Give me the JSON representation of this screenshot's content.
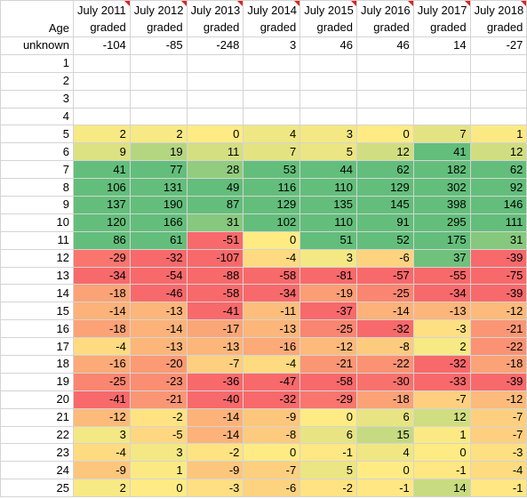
{
  "table": {
    "corner": "Age",
    "columns": [
      [
        "July 2011",
        "graded"
      ],
      [
        "July 2012",
        "graded"
      ],
      [
        "July 2013",
        "graded"
      ],
      [
        "July 2014",
        "graded"
      ],
      [
        "July 2015",
        "graded"
      ],
      [
        "July 2016",
        "graded"
      ],
      [
        "July 2017",
        "graded"
      ],
      [
        "July 2018",
        "graded"
      ]
    ],
    "rows": [
      {
        "label": "unknown",
        "values": [
          -104,
          -85,
          -248,
          3,
          46,
          46,
          14,
          -27
        ]
      },
      {
        "label": "1",
        "values": [
          null,
          null,
          null,
          null,
          null,
          null,
          null,
          null
        ]
      },
      {
        "label": "2",
        "values": [
          null,
          null,
          null,
          null,
          null,
          null,
          null,
          null
        ]
      },
      {
        "label": "3",
        "values": [
          null,
          null,
          null,
          null,
          null,
          null,
          null,
          null
        ]
      },
      {
        "label": "4",
        "values": [
          null,
          null,
          null,
          null,
          null,
          null,
          null,
          null
        ]
      },
      {
        "label": "5",
        "values": [
          2,
          2,
          0,
          4,
          3,
          0,
          7,
          1
        ]
      },
      {
        "label": "6",
        "values": [
          9,
          19,
          11,
          7,
          5,
          12,
          41,
          12
        ]
      },
      {
        "label": "7",
        "values": [
          41,
          77,
          28,
          53,
          44,
          62,
          182,
          62
        ]
      },
      {
        "label": "8",
        "values": [
          106,
          131,
          49,
          116,
          110,
          129,
          302,
          92
        ]
      },
      {
        "label": "9",
        "values": [
          137,
          190,
          87,
          129,
          135,
          145,
          398,
          146
        ]
      },
      {
        "label": "10",
        "values": [
          120,
          166,
          31,
          102,
          110,
          91,
          295,
          111
        ]
      },
      {
        "label": "11",
        "values": [
          86,
          61,
          -51,
          0,
          51,
          52,
          175,
          31
        ]
      },
      {
        "label": "12",
        "values": [
          -29,
          -32,
          -107,
          -4,
          3,
          -6,
          37,
          -39
        ]
      },
      {
        "label": "13",
        "values": [
          -34,
          -54,
          -88,
          -58,
          -81,
          -57,
          -55,
          -75
        ]
      },
      {
        "label": "14",
        "values": [
          -18,
          -46,
          -58,
          -34,
          -19,
          -25,
          -34,
          -39
        ]
      },
      {
        "label": "15",
        "values": [
          -14,
          -13,
          -41,
          -11,
          -37,
          -14,
          -13,
          -12
        ]
      },
      {
        "label": "16",
        "values": [
          -18,
          -14,
          -17,
          -13,
          -25,
          -32,
          -3,
          -21
        ]
      },
      {
        "label": "17",
        "values": [
          -4,
          -13,
          -13,
          -16,
          -12,
          -8,
          2,
          -22
        ]
      },
      {
        "label": "18",
        "values": [
          -16,
          -20,
          -7,
          -4,
          -21,
          -22,
          -32,
          -18
        ]
      },
      {
        "label": "19",
        "values": [
          -25,
          -23,
          -36,
          -47,
          -58,
          -30,
          -33,
          -39
        ]
      },
      {
        "label": "20",
        "values": [
          -41,
          -21,
          -40,
          -32,
          -29,
          -18,
          -7,
          -12
        ]
      },
      {
        "label": "21",
        "values": [
          -12,
          -2,
          -14,
          -9,
          0,
          6,
          12,
          -7
        ]
      },
      {
        "label": "22",
        "values": [
          3,
          -5,
          -14,
          -8,
          6,
          15,
          1,
          -7
        ]
      },
      {
        "label": "23",
        "values": [
          -4,
          3,
          -2,
          0,
          -1,
          4,
          0,
          -3
        ]
      },
      {
        "label": "24",
        "values": [
          -9,
          1,
          -9,
          -7,
          5,
          0,
          -1,
          -4
        ]
      },
      {
        "label": "25",
        "values": [
          2,
          0,
          -3,
          -6,
          -2,
          -1,
          14,
          -1
        ]
      }
    ]
  }
}
